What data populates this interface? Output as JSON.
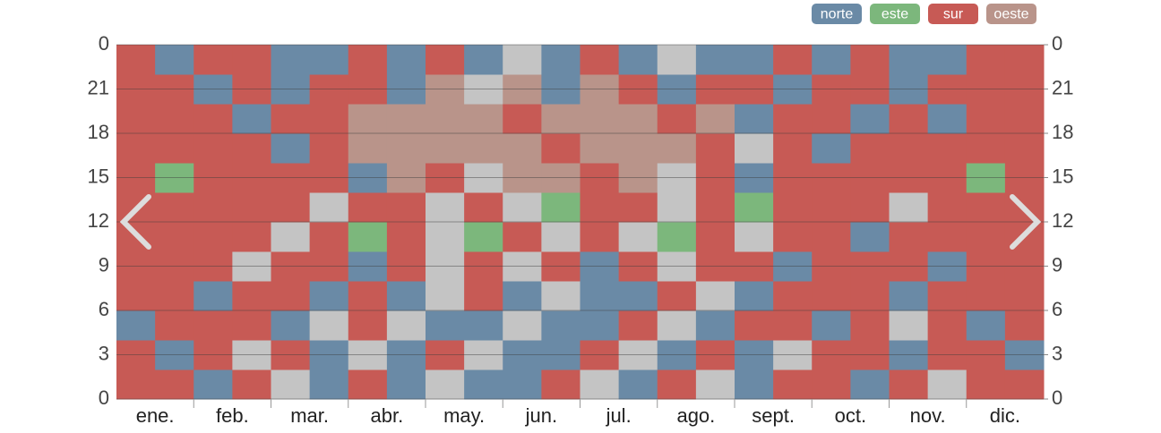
{
  "chart_data": {
    "type": "heatmap",
    "categories": [
      "ene.",
      "feb.",
      "mar.",
      "abr.",
      "may.",
      "jun.",
      "jul.",
      "ago.",
      "sept.",
      "oct.",
      "nov.",
      "dic."
    ],
    "series": [
      {
        "name": "norte",
        "color": "#6a8aa6"
      },
      {
        "name": "este",
        "color": "#7cb77c"
      },
      {
        "name": "sur",
        "color": "#c75a55"
      },
      {
        "name": "oeste",
        "color": "#b9948a"
      }
    ],
    "empty_color": "#c4c4c4",
    "ylim": [
      0,
      24
    ],
    "yticks": [
      0,
      3,
      6,
      9,
      12,
      15,
      18,
      21,
      {
        "value": 24,
        "label": "0"
      }
    ],
    "y2lim": [
      0,
      24
    ],
    "y2ticks": [
      0,
      3,
      6,
      9,
      12,
      15,
      18,
      21,
      {
        "value": 24,
        "label": "0"
      }
    ],
    "grid": true,
    "legend": "top-right",
    "cells": [
      [
        2,
        2,
        0,
        2,
        null,
        0,
        2,
        0,
        null,
        0,
        0,
        2,
        null,
        0,
        2,
        null,
        0,
        2,
        2,
        0,
        2,
        null,
        2,
        2
      ],
      [
        2,
        0,
        2,
        null,
        2,
        0,
        null,
        0,
        2,
        null,
        0,
        0,
        2,
        null,
        0,
        2,
        0,
        null,
        2,
        2,
        0,
        2,
        2,
        0
      ],
      [
        0,
        2,
        2,
        2,
        0,
        null,
        2,
        null,
        0,
        0,
        null,
        0,
        0,
        2,
        null,
        0,
        2,
        2,
        0,
        2,
        null,
        2,
        0,
        2
      ],
      [
        2,
        2,
        0,
        2,
        2,
        0,
        2,
        0,
        null,
        2,
        0,
        null,
        0,
        0,
        2,
        null,
        0,
        2,
        2,
        2,
        0,
        2,
        2,
        2
      ],
      [
        2,
        2,
        2,
        null,
        2,
        2,
        0,
        2,
        null,
        2,
        null,
        2,
        0,
        2,
        null,
        2,
        2,
        0,
        2,
        2,
        2,
        0,
        2,
        2
      ],
      [
        2,
        2,
        2,
        2,
        null,
        2,
        1,
        2,
        null,
        1,
        2,
        null,
        2,
        null,
        1,
        2,
        null,
        2,
        2,
        0,
        2,
        2,
        2,
        2
      ],
      [
        2,
        2,
        2,
        2,
        2,
        null,
        2,
        2,
        null,
        2,
        null,
        1,
        2,
        2,
        null,
        2,
        1,
        2,
        2,
        2,
        null,
        2,
        2,
        2
      ],
      [
        2,
        1,
        2,
        2,
        2,
        2,
        0,
        3,
        2,
        null,
        3,
        3,
        2,
        3,
        null,
        2,
        0,
        2,
        2,
        2,
        2,
        2,
        1,
        2
      ],
      [
        2,
        2,
        2,
        2,
        0,
        2,
        3,
        3,
        3,
        3,
        3,
        2,
        3,
        3,
        3,
        2,
        null,
        2,
        0,
        2,
        2,
        2,
        2,
        2
      ],
      [
        2,
        2,
        2,
        0,
        2,
        2,
        3,
        3,
        3,
        3,
        2,
        3,
        3,
        3,
        2,
        3,
        0,
        2,
        2,
        0,
        2,
        0,
        2,
        2
      ],
      [
        2,
        2,
        0,
        2,
        0,
        2,
        2,
        0,
        3,
        null,
        3,
        0,
        3,
        2,
        0,
        2,
        2,
        0,
        2,
        2,
        0,
        2,
        2,
        2
      ],
      [
        2,
        0,
        2,
        2,
        0,
        0,
        2,
        0,
        2,
        0,
        null,
        0,
        2,
        0,
        null,
        0,
        0,
        2,
        0,
        2,
        0,
        0,
        2,
        2
      ]
    ]
  }
}
